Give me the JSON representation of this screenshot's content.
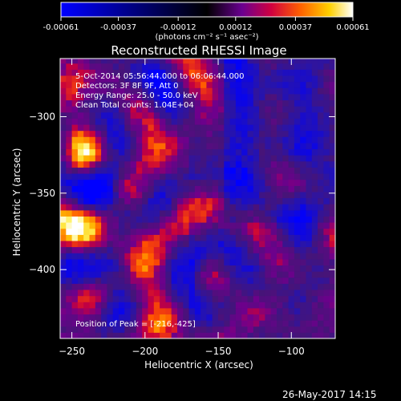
{
  "chart_data": {
    "type": "heatmap",
    "title": "Reconstructed RHESSI Image",
    "xlabel": "Heliocentric X (arcsec)",
    "ylabel": "Heliocentric Y (arcsec)",
    "xlim": [
      -258,
      -70
    ],
    "ylim": [
      -445,
      -262
    ],
    "x_ticks": [
      -250,
      -200,
      -150,
      -100
    ],
    "y_ticks": [
      -300,
      -350,
      -400
    ],
    "colorbar": {
      "range": [
        -0.00061,
        0.00061
      ],
      "tick_values": [
        -0.00061,
        -0.00037,
        -0.00012,
        0.00012,
        0.00037,
        0.00061
      ],
      "tick_labels": [
        "-0.00061",
        "-0.00037",
        "-0.00012",
        "0.00012",
        "0.00037",
        "0.00061"
      ],
      "units_label": "(photons cm⁻² s⁻¹ asec⁻²)"
    },
    "annotations": [
      "5-Oct-2014 05:56:44.000 to 06:06:44.000",
      "Detectors: 3F 8F 9F, Att 0",
      "Energy Range: 25.0 - 50.0 keV",
      "Clean    Total counts: 1.04E+04"
    ],
    "peak_annotation": "Position of Peak = [-216,-425]",
    "footer_date": "26-May-2017 14:15",
    "grid": false,
    "pixel_arcsec": 4
  }
}
